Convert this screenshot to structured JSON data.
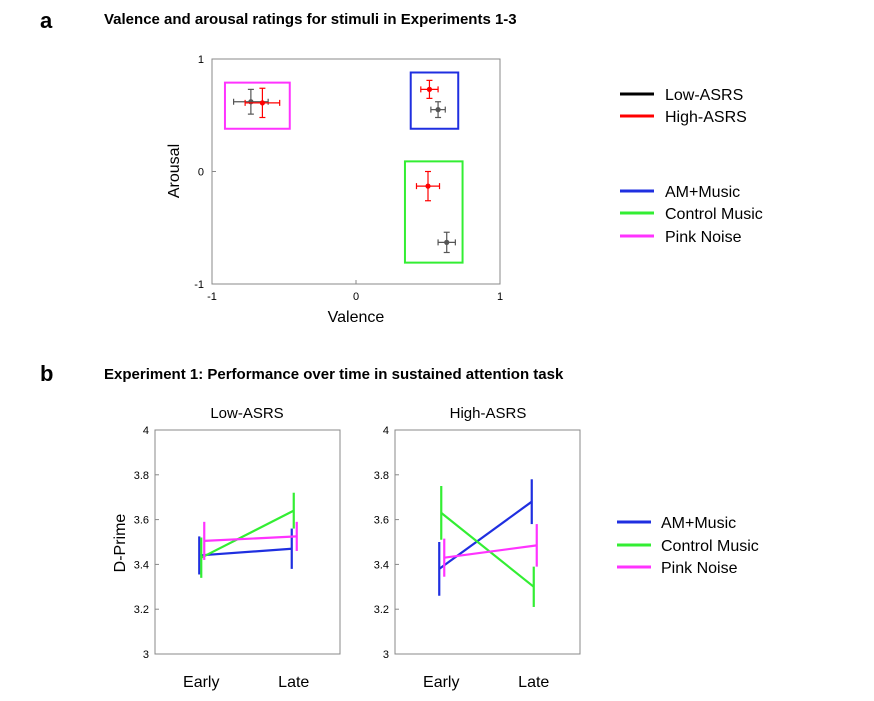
{
  "colors": {
    "low_asrs": "#000000",
    "high_asrs": "#ff0000",
    "am_music": "#1f2fe0",
    "control_music": "#33ee33",
    "pink_noise": "#ff33ff",
    "axis": "#888888"
  },
  "panel_a": {
    "letter": "a",
    "title": "Valence and arousal ratings for stimuli in Experiments 1-3",
    "legend_group": [
      "Low-ASRS",
      "High-ASRS"
    ],
    "legend_stimuli": [
      "AM+Music",
      "Control Music",
      "Pink Noise"
    ]
  },
  "panel_b": {
    "letter": "b",
    "title": "Experiment 1: Performance over time in sustained attention task",
    "legend": [
      "AM+Music",
      "Control Music",
      "Pink Noise"
    ]
  },
  "chart_data": [
    {
      "type": "scatter",
      "title": "",
      "xlabel": "Valence",
      "ylabel": "Arousal",
      "xlim": [
        -1,
        1
      ],
      "ylim": [
        -1,
        1
      ],
      "xticks": [
        "-1",
        "0",
        "1"
      ],
      "yticks": [
        "-1",
        "0",
        "1"
      ],
      "grid": false,
      "series": [
        {
          "name": "Low-ASRS",
          "points": [
            {
              "stimulus": "Pink Noise",
              "x": -0.73,
              "y": 0.62,
              "xerr": 0.12,
              "yerr": 0.11
            },
            {
              "stimulus": "AM+Music",
              "x": 0.57,
              "y": 0.55,
              "xerr": 0.05,
              "yerr": 0.07
            },
            {
              "stimulus": "Control Music",
              "x": 0.63,
              "y": -0.63,
              "xerr": 0.06,
              "yerr": 0.09
            }
          ]
        },
        {
          "name": "High-ASRS",
          "points": [
            {
              "stimulus": "Pink Noise",
              "x": -0.65,
              "y": 0.61,
              "xerr": 0.12,
              "yerr": 0.13
            },
            {
              "stimulus": "AM+Music",
              "x": 0.51,
              "y": 0.73,
              "xerr": 0.06,
              "yerr": 0.08
            },
            {
              "stimulus": "Control Music",
              "x": 0.5,
              "y": -0.13,
              "xerr": 0.08,
              "yerr": 0.13
            }
          ]
        }
      ],
      "stimulus_boxes": [
        {
          "stimulus": "Pink Noise",
          "x": [
            -0.91,
            -0.46
          ],
          "y": [
            0.38,
            0.79
          ]
        },
        {
          "stimulus": "AM+Music",
          "x": [
            0.38,
            0.71
          ],
          "y": [
            0.38,
            0.88
          ]
        },
        {
          "stimulus": "Control Music",
          "x": [
            0.34,
            0.74
          ],
          "y": [
            -0.81,
            0.09
          ]
        }
      ]
    },
    {
      "type": "line",
      "title": "Low-ASRS",
      "xlabel": "",
      "ylabel": "D-Prime",
      "categories": [
        "Early",
        "Late"
      ],
      "ylim": [
        3,
        4
      ],
      "yticks": [
        "3",
        "3.2",
        "3.4",
        "3.6",
        "3.8",
        "4"
      ],
      "series": [
        {
          "name": "AM+Music",
          "values": [
            3.44,
            3.47
          ],
          "errors": [
            0.085,
            0.09
          ]
        },
        {
          "name": "Control Music",
          "values": [
            3.43,
            3.64
          ],
          "errors": [
            0.09,
            0.08
          ]
        },
        {
          "name": "Pink Noise",
          "values": [
            3.505,
            3.525
          ],
          "errors": [
            0.085,
            0.065
          ]
        }
      ]
    },
    {
      "type": "line",
      "title": "High-ASRS",
      "xlabel": "",
      "ylabel": "",
      "categories": [
        "Early",
        "Late"
      ],
      "ylim": [
        3,
        4
      ],
      "yticks": [
        "3",
        "3.2",
        "3.4",
        "3.6",
        "3.8",
        "4"
      ],
      "series": [
        {
          "name": "AM+Music",
          "values": [
            3.38,
            3.68
          ],
          "errors": [
            0.12,
            0.1
          ]
        },
        {
          "name": "Control Music",
          "values": [
            3.63,
            3.3
          ],
          "errors": [
            0.12,
            0.09
          ]
        },
        {
          "name": "Pink Noise",
          "values": [
            3.43,
            3.485
          ],
          "errors": [
            0.085,
            0.095
          ]
        }
      ]
    }
  ]
}
